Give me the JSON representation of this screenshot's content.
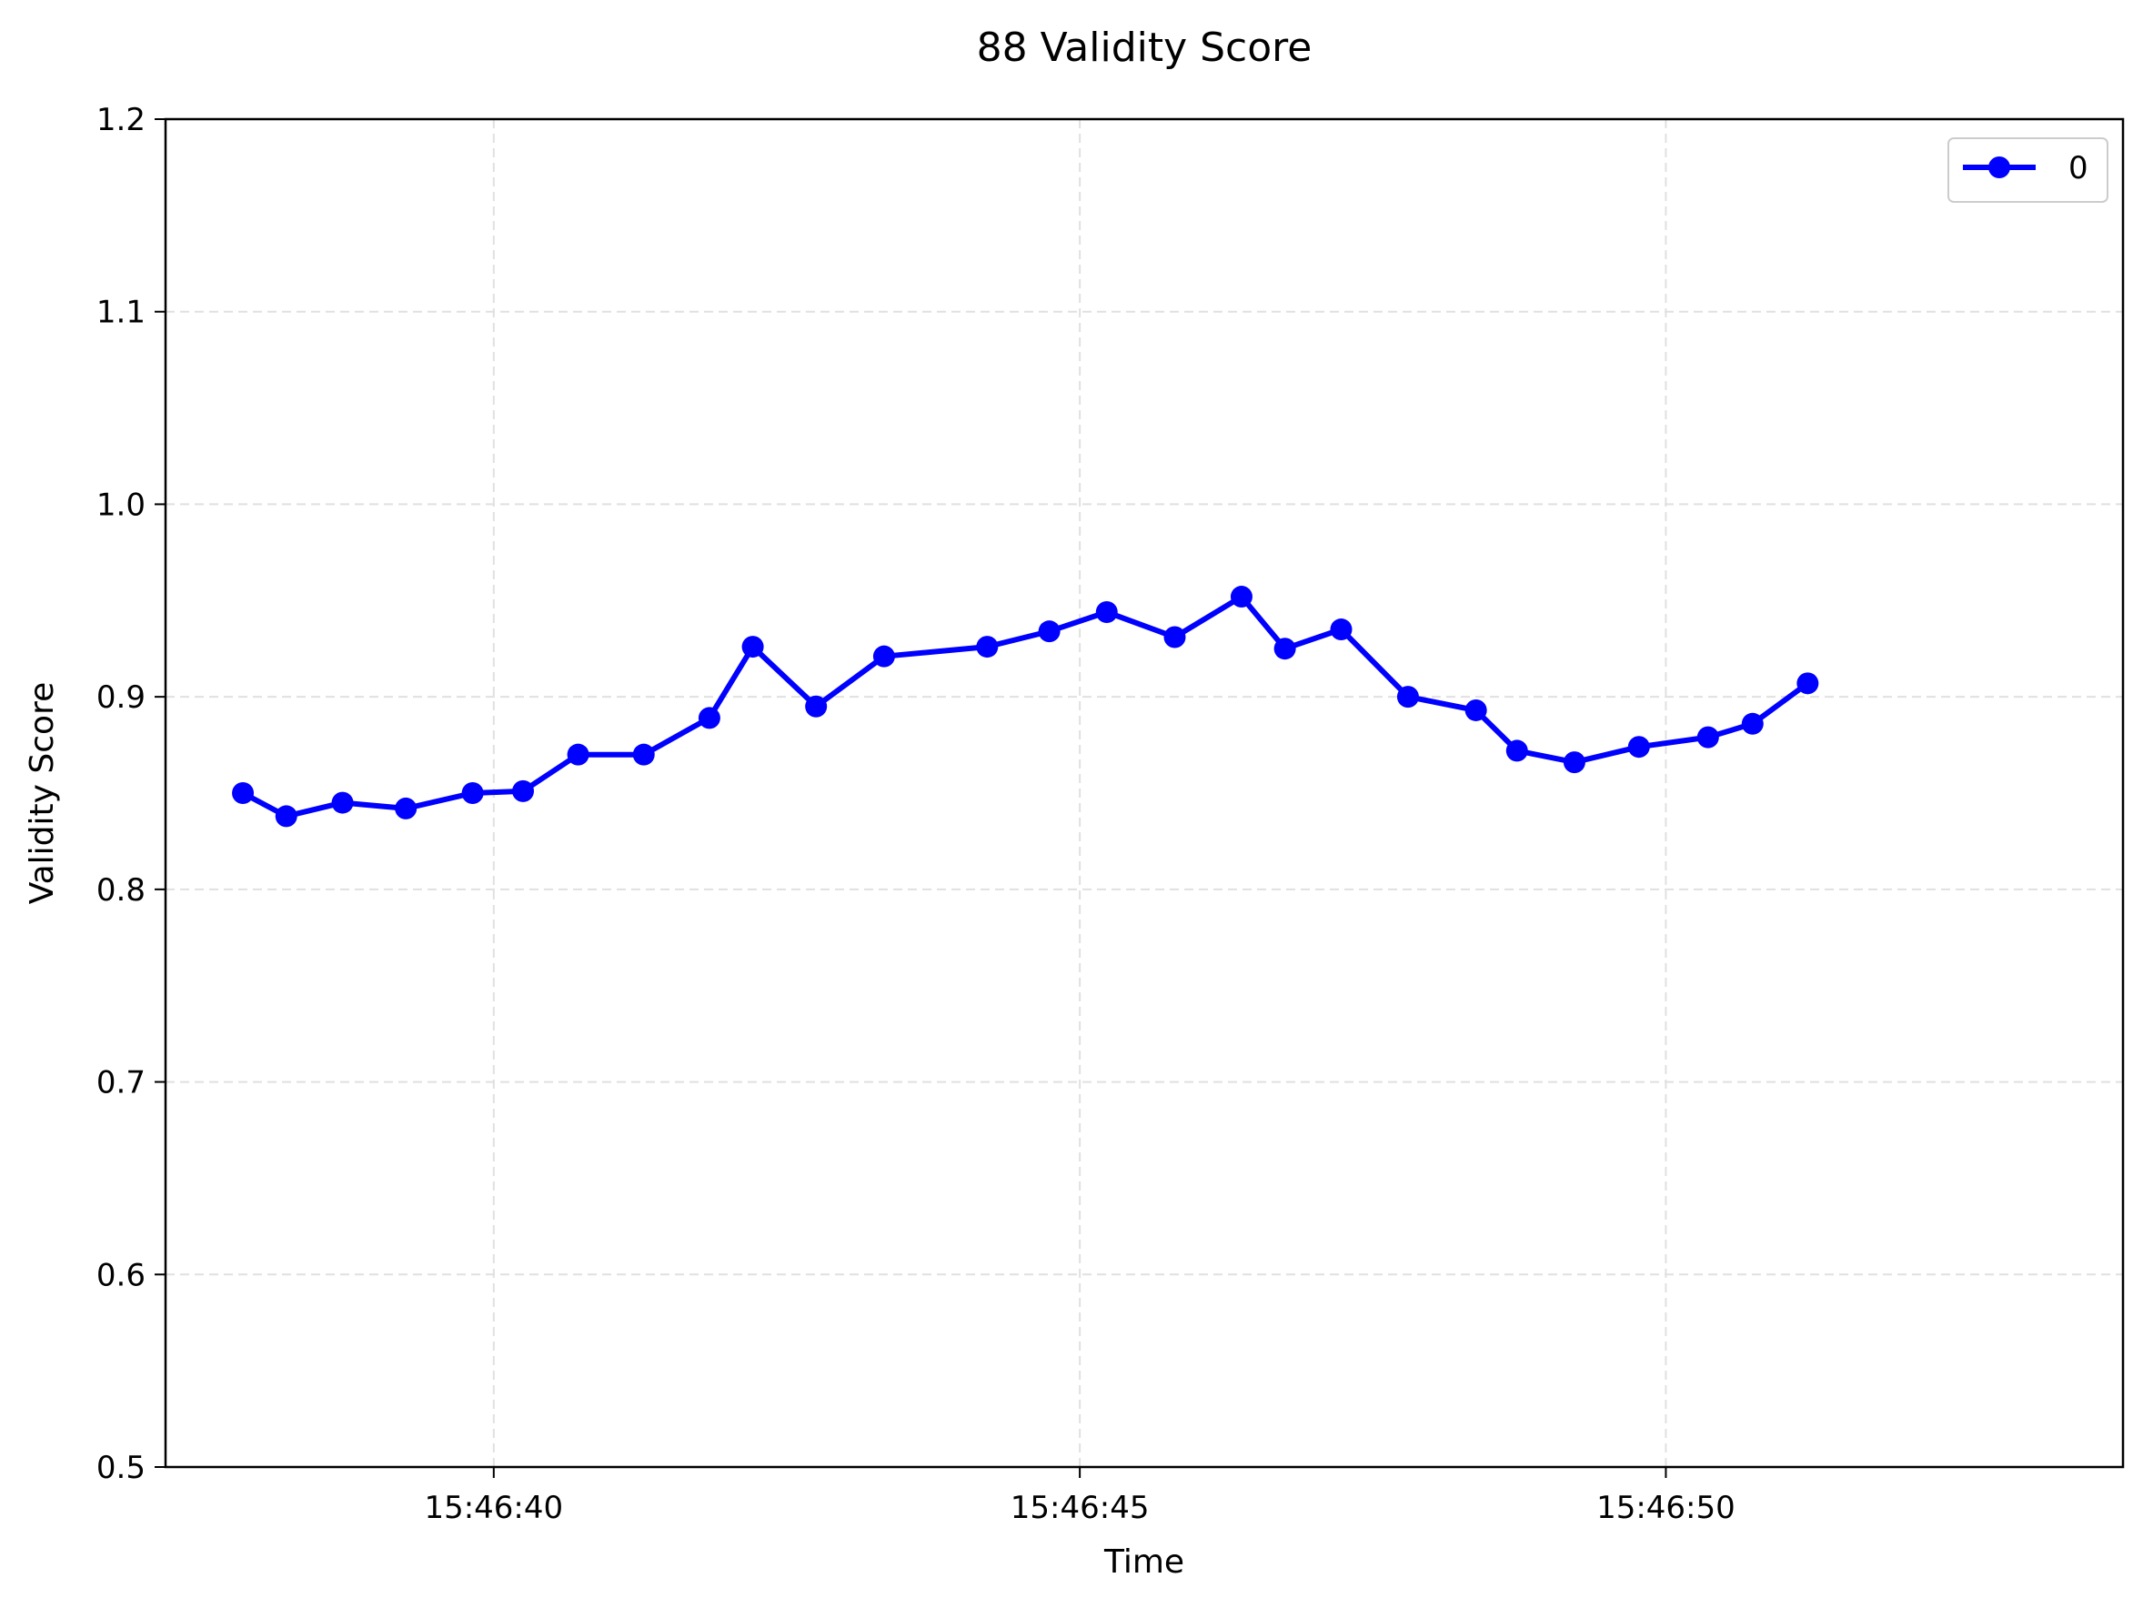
{
  "chart_data": {
    "type": "line",
    "title": "88 Validity Score",
    "xlabel": "Time",
    "ylabel": "Validity Score",
    "ylim": [
      0.5,
      1.2
    ],
    "xlim": [
      "15:46:37.200",
      "15:46:53.900"
    ],
    "yticks": [
      "0.5",
      "0.6",
      "0.7",
      "0.8",
      "0.9",
      "1.0",
      "1.1",
      "1.2"
    ],
    "xticks": [
      "15:46:40",
      "15:46:45",
      "15:46:50"
    ],
    "grid": true,
    "legend_position": "top-right",
    "series": [
      {
        "name": "0",
        "color": "#0000ff",
        "marker": "circle",
        "x": [
          "15:46:37.860",
          "15:46:38.230",
          "15:46:38.710",
          "15:46:39.250",
          "15:46:39.820",
          "15:46:40.250",
          "15:46:40.720",
          "15:46:41.280",
          "15:46:41.840",
          "15:46:42.210",
          "15:46:42.750",
          "15:46:43.330",
          "15:46:44.210",
          "15:46:44.740",
          "15:46:45.230",
          "15:46:45.810",
          "15:46:46.380",
          "15:46:46.750",
          "15:46:47.230",
          "15:46:47.800",
          "15:46:48.380",
          "15:46:48.730",
          "15:46:49.220",
          "15:46:49.770",
          "15:46:50.360",
          "15:46:50.740",
          "15:46:51.210"
        ],
        "values": [
          0.85,
          0.838,
          0.845,
          0.842,
          0.85,
          0.851,
          0.87,
          0.87,
          0.889,
          0.926,
          0.895,
          0.921,
          0.926,
          0.934,
          0.944,
          0.931,
          0.952,
          0.925,
          0.935,
          0.9,
          0.893,
          0.872,
          0.866,
          0.874,
          0.879,
          0.886,
          0.907
        ]
      }
    ]
  }
}
